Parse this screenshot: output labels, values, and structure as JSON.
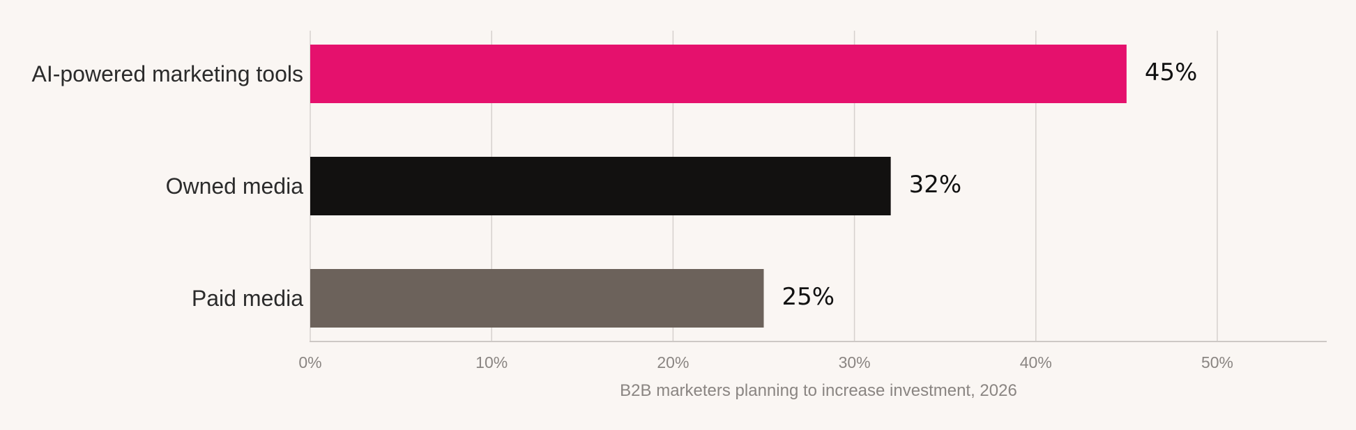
{
  "chart_data": {
    "type": "bar",
    "orientation": "horizontal",
    "categories": [
      "AI-powered marketing tools",
      "Owned media",
      "Paid media"
    ],
    "values": [
      45,
      32,
      25
    ],
    "value_labels": [
      "45%",
      "32%",
      "25%"
    ],
    "colors": [
      "#e5116d",
      "#121110",
      "#6c625b"
    ],
    "xlabel": "B2B marketers planning to increase investment, 2026",
    "xlim": [
      0,
      56
    ],
    "xticks": [
      0,
      10,
      20,
      30,
      40,
      50
    ],
    "xtick_labels": [
      "0%",
      "10%",
      "20%",
      "30%",
      "40%",
      "50%"
    ],
    "grid": "vertical",
    "legend": "none"
  }
}
